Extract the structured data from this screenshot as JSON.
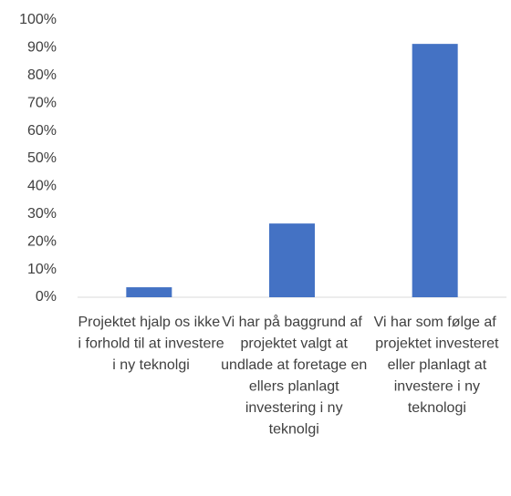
{
  "chart_data": {
    "type": "bar",
    "categories": [
      "Projektet hjalp os ikke i forhold til at investere i ny teknolgi",
      "Vi har på baggrund af projektet valgt at undlade at foretage en ellers planlagt investering i ny teknolgi",
      "Vi har som følge af projektet investeret eller planlagt at investere i ny teknologi"
    ],
    "values": [
      3.6,
      26.6,
      91.4
    ],
    "color": "#4472c4",
    "ylim": [
      0,
      100
    ],
    "yticks": [
      {
        "value": 0,
        "label": "0%"
      },
      {
        "value": 10,
        "label": "10%"
      },
      {
        "value": 20,
        "label": "20%"
      },
      {
        "value": 30,
        "label": "30%"
      },
      {
        "value": 40,
        "label": "40%"
      },
      {
        "value": 50,
        "label": "50%"
      },
      {
        "value": 60,
        "label": "60%"
      },
      {
        "value": 70,
        "label": "70%"
      },
      {
        "value": 80,
        "label": "80%"
      },
      {
        "value": 90,
        "label": "90%"
      },
      {
        "value": 100,
        "label": "100%"
      }
    ],
    "grid": false
  }
}
